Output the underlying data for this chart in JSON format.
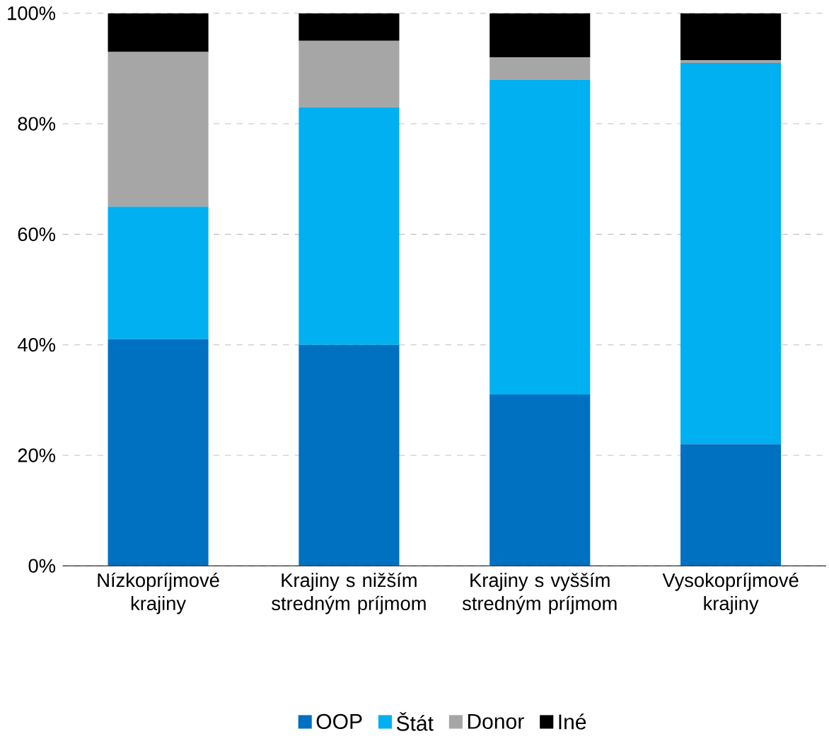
{
  "chart_data": {
    "type": "bar",
    "stacked": true,
    "categories": [
      "Nízkopríjmové krajiny",
      "Krajiny s nižším stredným príjmom",
      "Krajiny s vyšším stredným príjmom",
      "Vysokopríjmové krajiny"
    ],
    "series": [
      {
        "name": "OOP",
        "color": "#0070c0",
        "values": [
          41,
          40,
          31,
          22
        ]
      },
      {
        "name": "Štát",
        "color": "#00b0f0",
        "values": [
          24,
          43,
          57,
          69
        ]
      },
      {
        "name": "Donor",
        "color": "#a6a6a6",
        "values": [
          28,
          12,
          4,
          0.5
        ]
      },
      {
        "name": "Iné",
        "color": "#000000",
        "values": [
          7,
          5,
          8,
          8.5
        ]
      }
    ],
    "ylim": [
      0,
      100
    ],
    "yticks": [
      {
        "value": 0,
        "label": "0%"
      },
      {
        "value": 20,
        "label": "20%"
      },
      {
        "value": 40,
        "label": "40%"
      },
      {
        "value": 60,
        "label": "60%"
      },
      {
        "value": 80,
        "label": "80%"
      },
      {
        "value": 100,
        "label": "100%"
      }
    ],
    "grid": "y",
    "legend": "bottom"
  }
}
